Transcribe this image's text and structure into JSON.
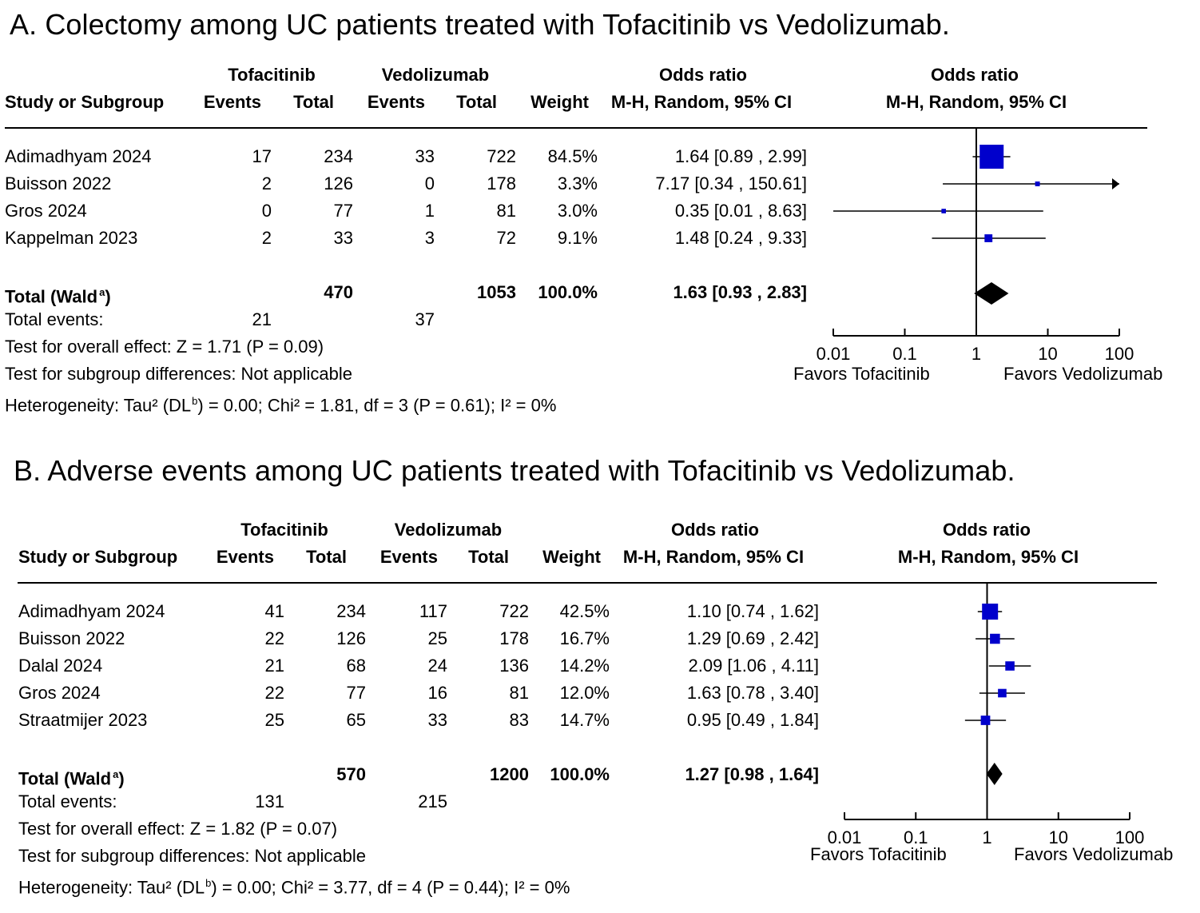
{
  "chart_data": [
    {
      "type": "forest",
      "title": "A. Colectomy among UC patients treated with Tofacitinib vs Vedolizumab.",
      "header": {
        "group1": "Tofacitinib",
        "group2": "Vedolizumab",
        "study": "Study or Subgroup",
        "events": "Events",
        "total": "Total",
        "weight": "Weight",
        "or_top": "Odds ratio",
        "or_bottom": "M-H, Random, 95% CI",
        "plot_top": "Odds ratio",
        "plot_bottom": "M-H, Random, 95% CI"
      },
      "studies": [
        {
          "name": "Adimadhyam 2024",
          "e1": "17",
          "n1": "234",
          "e2": "33",
          "n2": "722",
          "weight": "84.5%",
          "ci_text": "1.64 [0.89 , 2.99]",
          "or": 1.64,
          "lo": 0.89,
          "hi": 2.99,
          "w": 84.5
        },
        {
          "name": "Buisson 2022",
          "e1": "2",
          "n1": "126",
          "e2": "0",
          "n2": "178",
          "weight": "3.3%",
          "ci_text": "7.17 [0.34 , 150.61]",
          "or": 7.17,
          "lo": 0.34,
          "hi": 150.61,
          "w": 3.3
        },
        {
          "name": "Gros 2024",
          "e1": "0",
          "n1": "77",
          "e2": "1",
          "n2": "81",
          "weight": "3.0%",
          "ci_text": "0.35 [0.01 , 8.63]",
          "or": 0.35,
          "lo": 0.01,
          "hi": 8.63,
          "w": 3.0
        },
        {
          "name": "Kappelman 2023",
          "e1": "2",
          "n1": "33",
          "e2": "3",
          "n2": "72",
          "weight": "9.1%",
          "ci_text": "1.48 [0.24 , 9.33]",
          "or": 1.48,
          "lo": 0.24,
          "hi": 9.33,
          "w": 9.1
        }
      ],
      "total": {
        "label": "Total (Wald",
        "sup": "a",
        "close": ")",
        "n1": "470",
        "n2": "1053",
        "weight": "100.0%",
        "ci_text": "1.63 [0.93 , 2.83]",
        "or": 1.63,
        "lo": 0.93,
        "hi": 2.83
      },
      "total_events": {
        "label": "Total events:",
        "e1": "21",
        "e2": "37"
      },
      "overall_effect": "Test for overall effect: Z = 1.71 (P = 0.09)",
      "subgroup": "Test for subgroup differences: Not applicable",
      "heterogeneity": {
        "pre": "Heterogeneity: Tau² (DL",
        "sup": "b",
        "post": ") = 0.00; Chi² = 1.81, df = 3 (P = 0.61); I² = 0%"
      },
      "axis": {
        "scale": "log",
        "xlim": [
          0.01,
          100
        ],
        "ticks": [
          0.01,
          0.1,
          1,
          10,
          100
        ],
        "tick_labels": [
          "0.01",
          "0.1",
          "1",
          "10",
          "100"
        ],
        "favors_left": "Favors Tofacitinib",
        "favors_right": "Favors Vedolizumab"
      },
      "arrows": [
        {
          "study": 1,
          "side": "right"
        }
      ],
      "colors": {
        "marker": "#0000cc",
        "diamond": "#000000"
      }
    },
    {
      "type": "forest",
      "title": "B. Adverse events among UC patients treated with Tofacitinib vs Vedolizumab.",
      "header": {
        "group1": "Tofacitinib",
        "group2": "Vedolizumab",
        "study": "Study or Subgroup",
        "events": "Events",
        "total": "Total",
        "weight": "Weight",
        "or_top": "Odds ratio",
        "or_bottom": "M-H, Random, 95% CI",
        "plot_top": "Odds ratio",
        "plot_bottom": "M-H, Random, 95% CI"
      },
      "studies": [
        {
          "name": "Adimadhyam 2024",
          "e1": "41",
          "n1": "234",
          "e2": "117",
          "n2": "722",
          "weight": "42.5%",
          "ci_text": "1.10 [0.74 , 1.62]",
          "or": 1.1,
          "lo": 0.74,
          "hi": 1.62,
          "w": 42.5
        },
        {
          "name": "Buisson 2022",
          "e1": "22",
          "n1": "126",
          "e2": "25",
          "n2": "178",
          "weight": "16.7%",
          "ci_text": "1.29 [0.69 , 2.42]",
          "or": 1.29,
          "lo": 0.69,
          "hi": 2.42,
          "w": 16.7
        },
        {
          "name": "Dalal 2024",
          "e1": "21",
          "n1": "68",
          "e2": "24",
          "n2": "136",
          "weight": "14.2%",
          "ci_text": "2.09 [1.06 , 4.11]",
          "or": 2.09,
          "lo": 1.06,
          "hi": 4.11,
          "w": 14.2
        },
        {
          "name": "Gros 2024",
          "e1": "22",
          "n1": "77",
          "e2": "16",
          "n2": "81",
          "weight": "12.0%",
          "ci_text": "1.63 [0.78 , 3.40]",
          "or": 1.63,
          "lo": 0.78,
          "hi": 3.4,
          "w": 12.0
        },
        {
          "name": "Straatmijer 2023",
          "e1": "25",
          "n1": "65",
          "e2": "33",
          "n2": "83",
          "weight": "14.7%",
          "ci_text": "0.95 [0.49 , 1.84]",
          "or": 0.95,
          "lo": 0.49,
          "hi": 1.84,
          "w": 14.7
        }
      ],
      "total": {
        "label": "Total (Wald",
        "sup": "a",
        "close": ")",
        "n1": "570",
        "n2": "1200",
        "weight": "100.0%",
        "ci_text": "1.27 [0.98 , 1.64]",
        "or": 1.27,
        "lo": 0.98,
        "hi": 1.64
      },
      "total_events": {
        "label": "Total events:",
        "e1": "131",
        "e2": "215"
      },
      "overall_effect": "Test for overall effect: Z = 1.82 (P = 0.07)",
      "subgroup": "Test for subgroup differences: Not applicable",
      "heterogeneity": {
        "pre": "Heterogeneity: Tau² (DL",
        "sup": "b",
        "post": ") = 0.00; Chi² = 3.77, df = 4 (P = 0.44); I² = 0%"
      },
      "axis": {
        "scale": "log",
        "xlim": [
          0.01,
          100
        ],
        "ticks": [
          0.01,
          0.1,
          1,
          10,
          100
        ],
        "tick_labels": [
          "0.01",
          "0.1",
          "1",
          "10",
          "100"
        ],
        "favors_left": "Favors Tofacitinib",
        "favors_right": "Favors Vedolizumab"
      },
      "arrows": [],
      "colors": {
        "marker": "#0000cc",
        "diamond": "#000000"
      }
    }
  ]
}
